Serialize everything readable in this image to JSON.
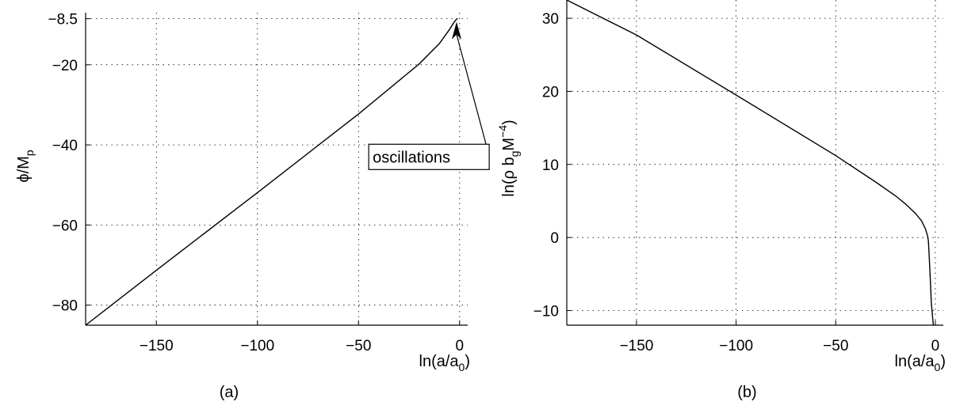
{
  "chart_data": [
    {
      "type": "line",
      "caption": "(a)",
      "xlabel": "ln(a/a",
      "xlabel_sub": "0",
      "xlabel_close": ")",
      "ylabel": "ϕ/M",
      "ylabel_sub": "p",
      "xlim": [
        -185,
        4
      ],
      "ylim": [
        -85,
        -7
      ],
      "xticks": [
        -150,
        -100,
        -50,
        0
      ],
      "xtick_labels": [
        "−150",
        "−100",
        "−50",
        "0"
      ],
      "yticks": [
        -80,
        -60,
        -40,
        -20,
        -8.5
      ],
      "ytick_labels": [
        "−80",
        "−60",
        "−40",
        "−20",
        "−8.5"
      ],
      "grid": true,
      "series": [
        {
          "x": [
            -185,
            -150,
            -100,
            -50,
            -20,
            -10,
            -5,
            -3,
            -2,
            -1.5,
            -1.0
          ],
          "y": [
            -85,
            -71.3,
            -51.9,
            -32.3,
            -19.8,
            -14.7,
            -11.2,
            -9.6,
            -8.9,
            -8.6,
            -8.5
          ]
        }
      ],
      "annotation": {
        "text": "oscillations",
        "arrow_to": [
          -1.5,
          -8.5
        ],
        "box_at": [
          -43,
          -43
        ]
      }
    },
    {
      "type": "line",
      "caption": "(b)",
      "xlabel": "ln(a/a",
      "xlabel_sub": "0",
      "xlabel_close": ")",
      "ylabel": "ln(ρ b",
      "ylabel_sub": "g",
      "ylabel_mid": "M",
      "ylabel_sup": "−4",
      "ylabel_close": ")",
      "xlim": [
        -185,
        4
      ],
      "ylim": [
        -12,
        32.5
      ],
      "xticks": [
        -150,
        -100,
        -50,
        0
      ],
      "xtick_labels": [
        "−150",
        "−100",
        "−50",
        "0"
      ],
      "yticks": [
        -10,
        0,
        10,
        20,
        30
      ],
      "ytick_labels": [
        "−10",
        "0",
        "10",
        "20",
        "30"
      ],
      "grid": true,
      "series": [
        {
          "x": [
            -185,
            -150,
            -100,
            -50,
            -30,
            -20,
            -15,
            -10,
            -7,
            -5,
            -4,
            -3.5,
            -3,
            -2.5,
            -2,
            -1
          ],
          "y": [
            32.5,
            27.7,
            19.5,
            11.2,
            7.6,
            5.7,
            4.6,
            3.3,
            2.3,
            1.2,
            0.3,
            -0.5,
            -3,
            -6,
            -9,
            -12
          ]
        }
      ]
    }
  ]
}
